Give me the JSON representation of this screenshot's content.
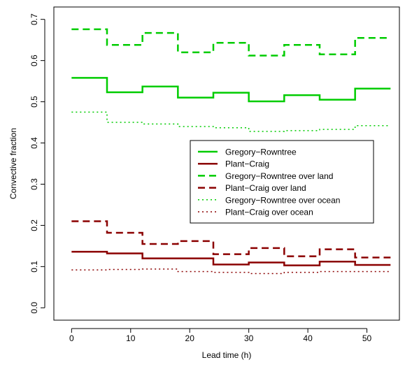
{
  "chart_data": {
    "type": "line",
    "step": true,
    "xlabel": "Lead time (h)",
    "ylabel": "Convective fraction",
    "xlim": [
      -3,
      55.5
    ],
    "ylim": [
      -0.03,
      0.73
    ],
    "xticks": [
      0,
      10,
      20,
      30,
      40,
      50
    ],
    "yticks": [
      0.0,
      0.1,
      0.2,
      0.3,
      0.4,
      0.5,
      0.6,
      0.7
    ],
    "ytick_labels": [
      "0.0",
      "0.1",
      "0.2",
      "0.3",
      "0.4",
      "0.5",
      "0.6",
      "0.7"
    ],
    "legend_position": "right",
    "series": [
      {
        "name": "Gregory−Rowntree",
        "color": "#00cc00",
        "linestyle": "solid",
        "x": [
          0,
          6,
          12,
          18,
          24,
          30,
          36,
          42,
          48,
          54
        ],
        "y": [
          0.558,
          0.523,
          0.537,
          0.51,
          0.522,
          0.501,
          0.516,
          0.505,
          0.532,
          0.532
        ]
      },
      {
        "name": "Plant−Craig",
        "color": "#8b0000",
        "linestyle": "solid",
        "x": [
          0,
          6,
          12,
          18,
          24,
          30,
          36,
          42,
          48,
          54
        ],
        "y": [
          0.136,
          0.132,
          0.12,
          0.12,
          0.105,
          0.11,
          0.103,
          0.112,
          0.104,
          0.104
        ]
      },
      {
        "name": "Gregory−Rowntree over land",
        "color": "#00cc00",
        "linestyle": "dashed",
        "x": [
          0,
          6,
          12,
          18,
          24,
          30,
          36,
          42,
          48,
          54
        ],
        "y": [
          0.676,
          0.638,
          0.667,
          0.62,
          0.643,
          0.612,
          0.638,
          0.615,
          0.655,
          0.655
        ]
      },
      {
        "name": "Plant−Craig over land",
        "color": "#8b0000",
        "linestyle": "dashed",
        "x": [
          0,
          6,
          12,
          18,
          24,
          30,
          36,
          42,
          48,
          54
        ],
        "y": [
          0.21,
          0.182,
          0.155,
          0.162,
          0.13,
          0.145,
          0.125,
          0.142,
          0.122,
          0.122
        ]
      },
      {
        "name": "Gregory−Rowntree over ocean",
        "color": "#00cc00",
        "linestyle": "dotted",
        "x": [
          0,
          6,
          12,
          18,
          24,
          30,
          36,
          42,
          48,
          54
        ],
        "y": [
          0.475,
          0.45,
          0.446,
          0.44,
          0.437,
          0.428,
          0.43,
          0.433,
          0.442,
          0.442
        ]
      },
      {
        "name": "Plant−Craig over ocean",
        "color": "#8b0000",
        "linestyle": "dotted",
        "x": [
          0,
          6,
          12,
          18,
          24,
          30,
          36,
          42,
          48,
          54
        ],
        "y": [
          0.092,
          0.093,
          0.094,
          0.088,
          0.086,
          0.083,
          0.086,
          0.088,
          0.088,
          0.088
        ]
      }
    ]
  }
}
